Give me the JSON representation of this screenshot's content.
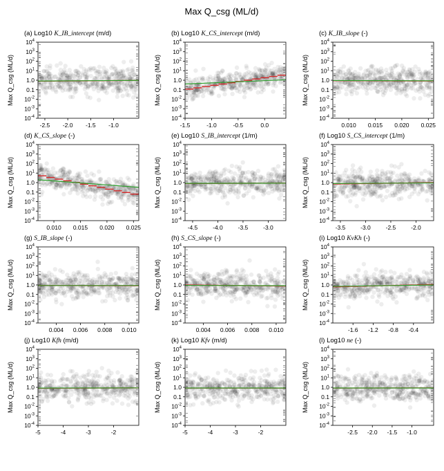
{
  "figure": {
    "title": "Max Q_csg (ML/d)",
    "y_axis_label": "Max Q_csg (ML/d)",
    "y_ticks": [
      {
        "base": "10",
        "exp": "4"
      },
      {
        "base": "10",
        "exp": "3"
      },
      {
        "base": "10",
        "exp": "2"
      },
      {
        "base": "10",
        "exp": "1"
      },
      {
        "text": "1.0"
      },
      {
        "text": "0.1"
      },
      {
        "base": "10",
        "exp": "-2"
      },
      {
        "base": "10",
        "exp": "-3"
      },
      {
        "base": "10",
        "exp": "-4"
      }
    ],
    "colors": {
      "points": "#000000",
      "binned_mean": "#d62728",
      "regression": "#2ca02c"
    }
  },
  "chart_data": [
    {
      "type": "scatter",
      "title_prefix": "(a) Log10 ",
      "title_param": "K_IB_intercept",
      "title_suffix": " (m/d)",
      "xlim": [
        -2.65,
        -0.45
      ],
      "xticks": [
        "-2.5",
        "-2.0",
        "-1.5",
        "-1.0"
      ],
      "xtick_values": [
        -2.5,
        -2.0,
        -1.5,
        -1.0
      ],
      "ylim_log10": [
        -4,
        4
      ],
      "red_line_log10": [
        -0.1,
        -0.02
      ],
      "green_line_log10": [
        -0.08,
        -0.02
      ],
      "spread_log10": 0.7
    },
    {
      "type": "scatter",
      "title_prefix": "(b) Log10 ",
      "title_param": "K_CS_intercept",
      "title_suffix": " (m/d)",
      "xlim": [
        -1.5,
        0.4
      ],
      "xticks": [
        "-1.5",
        "-1.0",
        "-0.5",
        "0.0"
      ],
      "xtick_values": [
        -1.5,
        -1.0,
        -0.5,
        0.0
      ],
      "ylim_log10": [
        -4,
        4
      ],
      "red_line_log10": [
        -1.0,
        0.6
      ],
      "green_line_log10": [
        -0.4,
        0.05
      ],
      "spread_log10": 0.6
    },
    {
      "type": "scatter",
      "title_prefix": "(c) ",
      "title_param": "K_IB_slope",
      "title_suffix": " (-)",
      "xlim": [
        0.007,
        0.026
      ],
      "xticks": [
        "0.010",
        "0.015",
        "0.020",
        "0.025"
      ],
      "xtick_values": [
        0.01,
        0.015,
        0.02,
        0.025
      ],
      "ylim_log10": [
        -4,
        4
      ],
      "red_line_log10": [
        -0.05,
        -0.08
      ],
      "green_line_log10": [
        -0.03,
        -0.06
      ],
      "spread_log10": 0.7
    },
    {
      "type": "scatter",
      "title_prefix": "(d) ",
      "title_param": "K_CS_slope",
      "title_suffix": " (-)",
      "xlim": [
        0.007,
        0.026
      ],
      "xticks": [
        "0.010",
        "0.015",
        "0.020",
        "0.025"
      ],
      "xtick_values": [
        0.01,
        0.015,
        0.02,
        0.025
      ],
      "ylim_log10": [
        -4,
        4
      ],
      "red_line_log10": [
        0.8,
        -1.3
      ],
      "green_line_log10": [
        0.3,
        -0.5
      ],
      "spread_log10": 0.6
    },
    {
      "type": "scatter",
      "title_prefix": "(e) Log10 ",
      "title_param": "S_IB_intercept",
      "title_suffix": " (1/m)",
      "xlim": [
        -4.65,
        -2.65
      ],
      "xticks": [
        "-4.5",
        "-4.0",
        "-3.5",
        "-3.0"
      ],
      "xtick_values": [
        -4.5,
        -4.0,
        -3.5,
        -3.0
      ],
      "ylim_log10": [
        -4,
        4
      ],
      "red_line_log10": [
        -0.1,
        -0.05
      ],
      "green_line_log10": [
        -0.08,
        -0.06
      ],
      "spread_log10": 0.7
    },
    {
      "type": "scatter",
      "title_prefix": "(f) Log10 ",
      "title_param": "S_CS_intercept",
      "title_suffix": " (1/m)",
      "xlim": [
        -3.65,
        -1.65
      ],
      "xticks": [
        "-3.5",
        "-3.0",
        "-2.5",
        "-2.0"
      ],
      "xtick_values": [
        -3.5,
        -3.0,
        -2.5,
        -2.0
      ],
      "ylim_log10": [
        -4,
        4
      ],
      "red_line_log10": [
        -0.15,
        0.0
      ],
      "green_line_log10": [
        -0.1,
        -0.03
      ],
      "spread_log10": 0.7
    },
    {
      "type": "scatter",
      "title_prefix": "(g) ",
      "title_param": "S_IB_slope",
      "title_suffix": " (-)",
      "xlim": [
        0.0025,
        0.0108
      ],
      "xticks": [
        "0.004",
        "0.006",
        "0.008",
        "0.010"
      ],
      "xtick_values": [
        0.004,
        0.006,
        0.008,
        0.01
      ],
      "ylim_log10": [
        -4,
        4
      ],
      "red_line_log10": [
        -0.05,
        -0.08
      ],
      "green_line_log10": [
        -0.06,
        -0.06
      ],
      "spread_log10": 0.7
    },
    {
      "type": "scatter",
      "title_prefix": "(h) ",
      "title_param": "S_CS_slope",
      "title_suffix": " (-)",
      "xlim": [
        0.0025,
        0.0108
      ],
      "xticks": [
        "0.004",
        "0.006",
        "0.008",
        "0.010"
      ],
      "xtick_values": [
        0.004,
        0.006,
        0.008,
        0.01
      ],
      "ylim_log10": [
        -4,
        4
      ],
      "red_line_log10": [
        0.0,
        -0.12
      ],
      "green_line_log10": [
        -0.04,
        -0.08
      ],
      "spread_log10": 0.7
    },
    {
      "type": "scatter",
      "title_prefix": "(i) Log10 ",
      "title_param": "KvKh",
      "title_suffix": " (-)",
      "xlim": [
        -2.0,
        0.0
      ],
      "xticks": [
        "-1.6",
        "-1.2",
        "-0.8",
        "-0.4"
      ],
      "xtick_values": [
        -1.6,
        -1.2,
        -0.8,
        -0.4
      ],
      "ylim_log10": [
        -4,
        4
      ],
      "red_line_log10": [
        -0.2,
        0.05
      ],
      "green_line_log10": [
        -0.15,
        0.0
      ],
      "spread_log10": 0.7
    },
    {
      "type": "scatter",
      "title_prefix": "(j) Log10 ",
      "title_param": "Kfh",
      "title_suffix": " (m/d)",
      "xlim": [
        -5.0,
        -1.0
      ],
      "xticks": [
        "-5",
        "-4",
        "-3",
        "-2"
      ],
      "xtick_values": [
        -5,
        -4,
        -3,
        -2
      ],
      "ylim_log10": [
        -4,
        4
      ],
      "red_line_log10": [
        -0.1,
        -0.06
      ],
      "green_line_log10": [
        -0.08,
        -0.06
      ],
      "spread_log10": 0.7
    },
    {
      "type": "scatter",
      "title_prefix": "(k) Log10 ",
      "title_param": "Kfv",
      "title_suffix": " (m/d)",
      "xlim": [
        -5.0,
        -1.0
      ],
      "xticks": [
        "-5",
        "-4",
        "-3",
        "-2"
      ],
      "xtick_values": [
        -5,
        -4,
        -3,
        -2
      ],
      "ylim_log10": [
        -4,
        4
      ],
      "red_line_log10": [
        -0.08,
        -0.08
      ],
      "green_line_log10": [
        -0.07,
        -0.07
      ],
      "spread_log10": 0.7
    },
    {
      "type": "scatter",
      "title_prefix": "(l) Log10 ",
      "title_param": "ne",
      "title_suffix": " (-)",
      "xlim": [
        -3.0,
        -0.45
      ],
      "xticks": [
        "-2.5",
        "-2.0",
        "-1.5",
        "-1.0"
      ],
      "xtick_values": [
        -2.5,
        -2.0,
        -1.5,
        -1.0
      ],
      "ylim_log10": [
        -4,
        4
      ],
      "red_line_log10": [
        -0.08,
        -0.06
      ],
      "green_line_log10": [
        -0.07,
        -0.07
      ],
      "spread_log10": 0.7
    }
  ]
}
